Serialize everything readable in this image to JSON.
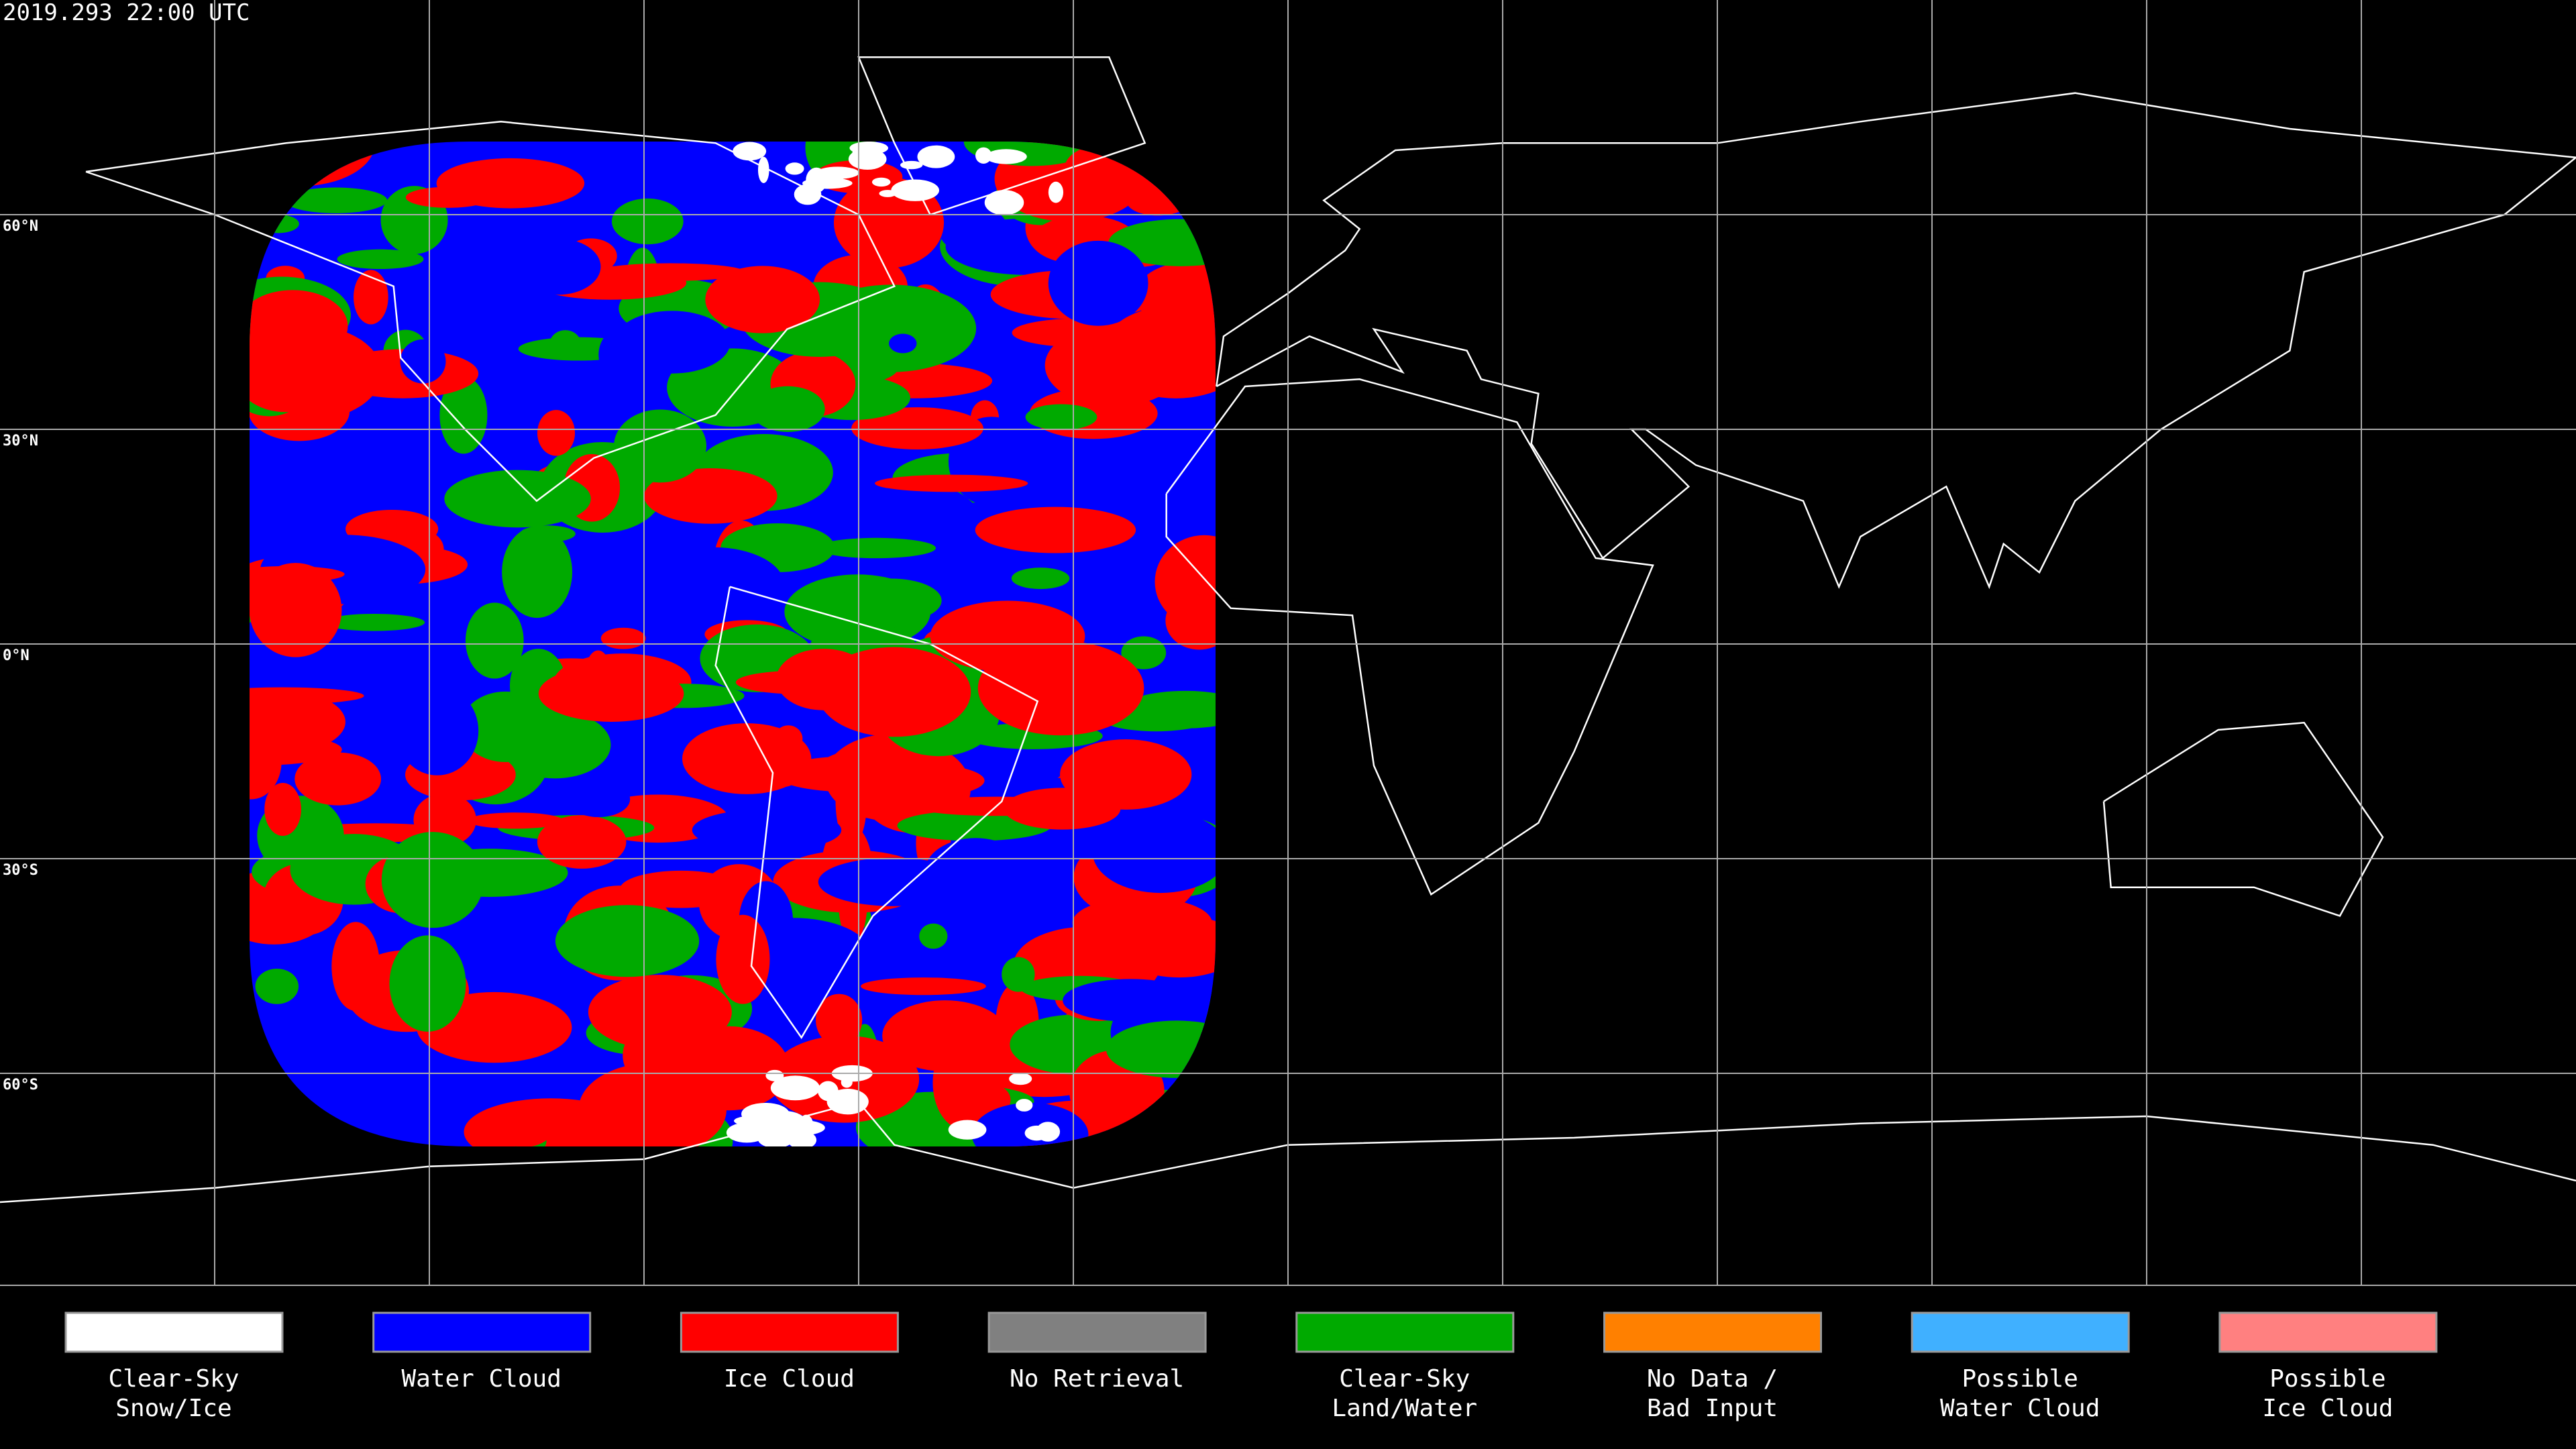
{
  "title": "2019.293 22:00 UTC",
  "latitude_labels": [
    "60°N",
    "30°N",
    "0°N",
    "30°S",
    "60°S"
  ],
  "legend": [
    {
      "lines": [
        "Clear-Sky",
        "Snow/Ice"
      ],
      "color": "#ffffff"
    },
    {
      "lines": [
        "Water Cloud"
      ],
      "color": "#0000ff"
    },
    {
      "lines": [
        "Ice Cloud"
      ],
      "color": "#ff0000"
    },
    {
      "lines": [
        "No Retrieval"
      ],
      "color": "#808080"
    },
    {
      "lines": [
        "Clear-Sky",
        "Land/Water"
      ],
      "color": "#00aa00"
    },
    {
      "lines": [
        "No Data /",
        "Bad Input"
      ],
      "color": "#ff8000"
    },
    {
      "lines": [
        "Possible",
        "Water Cloud"
      ],
      "color": "#40b0ff"
    },
    {
      "lines": [
        "Possible",
        "Ice Cloud"
      ],
      "color": "#ff8080"
    }
  ]
}
